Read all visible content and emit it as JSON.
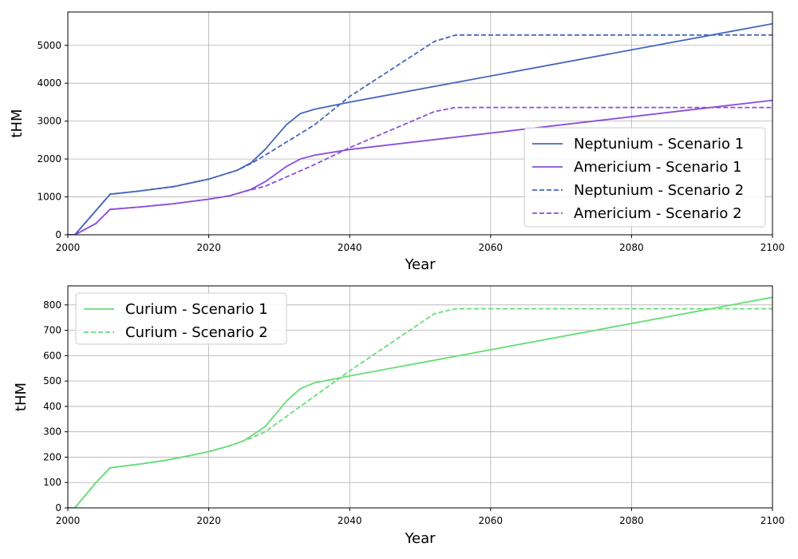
{
  "chart_data": [
    {
      "type": "line",
      "xlabel": "Year",
      "ylabel": "tHM",
      "xlim": [
        2000,
        2100
      ],
      "ylim": [
        0,
        5880
      ],
      "xticks": [
        2000,
        2020,
        2040,
        2060,
        2080,
        2100
      ],
      "yticks": [
        0,
        1000,
        2000,
        3000,
        4000,
        5000
      ],
      "grid": true,
      "legend_position": "lower-right",
      "series": [
        {
          "name": "Neptunium - Scenario 1",
          "color": "#4466bb",
          "style": "solid",
          "points": [
            [
              2000,
              0
            ],
            [
              2001,
              0
            ],
            [
              2006,
              1070
            ],
            [
              2010,
              1150
            ],
            [
              2015,
              1270
            ],
            [
              2020,
              1470
            ],
            [
              2024,
              1700
            ],
            [
              2026,
              1900
            ],
            [
              2028,
              2250
            ],
            [
              2031,
              2900
            ],
            [
              2033,
              3200
            ],
            [
              2035,
              3310
            ],
            [
              2040,
              3500
            ],
            [
              2100,
              5570
            ]
          ]
        },
        {
          "name": "Americium - Scenario 1",
          "color": "#8a4fd8",
          "style": "solid",
          "points": [
            [
              2000,
              0
            ],
            [
              2001,
              0
            ],
            [
              2004,
              300
            ],
            [
              2006,
              670
            ],
            [
              2010,
              730
            ],
            [
              2015,
              820
            ],
            [
              2020,
              940
            ],
            [
              2023,
              1030
            ],
            [
              2026,
              1200
            ],
            [
              2028,
              1400
            ],
            [
              2031,
              1800
            ],
            [
              2033,
              2000
            ],
            [
              2035,
              2100
            ],
            [
              2040,
              2250
            ],
            [
              2100,
              3550
            ]
          ]
        },
        {
          "name": "Neptunium - Scenario 2",
          "color": "#4466bb",
          "style": "dashed",
          "points": [
            [
              2000,
              0
            ],
            [
              2001,
              0
            ],
            [
              2006,
              1070
            ],
            [
              2010,
              1150
            ],
            [
              2015,
              1270
            ],
            [
              2020,
              1470
            ],
            [
              2024,
              1700
            ],
            [
              2026,
              1880
            ],
            [
              2028,
              2100
            ],
            [
              2035,
              2900
            ],
            [
              2040,
              3650
            ],
            [
              2052,
              5100
            ],
            [
              2055,
              5270
            ],
            [
              2100,
              5270
            ]
          ]
        },
        {
          "name": "Americium - Scenario 2",
          "color": "#8a4fd8",
          "style": "dashed",
          "points": [
            [
              2000,
              0
            ],
            [
              2001,
              0
            ],
            [
              2004,
              300
            ],
            [
              2006,
              670
            ],
            [
              2010,
              730
            ],
            [
              2015,
              820
            ],
            [
              2020,
              940
            ],
            [
              2023,
              1030
            ],
            [
              2025,
              1140
            ],
            [
              2028,
              1280
            ],
            [
              2035,
              1850
            ],
            [
              2040,
              2300
            ],
            [
              2052,
              3250
            ],
            [
              2055,
              3360
            ],
            [
              2100,
              3360
            ]
          ]
        }
      ]
    },
    {
      "type": "line",
      "xlabel": "Year",
      "ylabel": "tHM",
      "xlim": [
        2000,
        2100
      ],
      "ylim": [
        0,
        875
      ],
      "xticks": [
        2000,
        2020,
        2040,
        2060,
        2080,
        2100
      ],
      "yticks": [
        0,
        100,
        200,
        300,
        400,
        500,
        600,
        700,
        800
      ],
      "grid": true,
      "legend_position": "upper-left",
      "series": [
        {
          "name": "Curium - Scenario 1",
          "color": "#66dd77",
          "style": "solid",
          "points": [
            [
              2000,
              0
            ],
            [
              2001,
              0
            ],
            [
              2004,
              100
            ],
            [
              2006,
              158
            ],
            [
              2010,
              172
            ],
            [
              2014,
              188
            ],
            [
              2018,
              210
            ],
            [
              2020,
              222
            ],
            [
              2023,
              245
            ],
            [
              2025,
              265
            ],
            [
              2028,
              320
            ],
            [
              2031,
              420
            ],
            [
              2033,
              470
            ],
            [
              2035,
              493
            ],
            [
              2040,
              520
            ],
            [
              2100,
              830
            ]
          ]
        },
        {
          "name": "Curium - Scenario 2",
          "color": "#66dd77",
          "style": "dashed",
          "points": [
            [
              2000,
              0
            ],
            [
              2001,
              0
            ],
            [
              2004,
              100
            ],
            [
              2006,
              158
            ],
            [
              2010,
              172
            ],
            [
              2014,
              188
            ],
            [
              2018,
              210
            ],
            [
              2020,
              222
            ],
            [
              2023,
              245
            ],
            [
              2026,
              275
            ],
            [
              2028,
              300
            ],
            [
              2040,
              540
            ],
            [
              2052,
              765
            ],
            [
              2055,
              785
            ],
            [
              2100,
              785
            ]
          ]
        }
      ]
    }
  ]
}
